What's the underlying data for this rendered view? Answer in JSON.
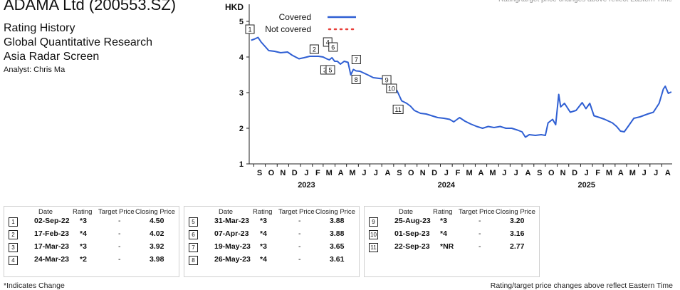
{
  "header": {
    "company": "ADAMA Ltd (200553.SZ)",
    "lines": [
      "Rating History",
      "Global Quantitative Research",
      "Asia Radar Screen"
    ],
    "analyst": "Analyst: Chris Ma"
  },
  "chart_data": {
    "type": "line",
    "ylabel": "HKD",
    "ylim": [
      1,
      5.4
    ],
    "yticks": [
      1,
      2,
      3,
      4,
      5
    ],
    "xlim": [
      "2022-08-20",
      "2025-08-28"
    ],
    "month_labels": [
      "S",
      "O",
      "N",
      "D",
      "J",
      "F",
      "M",
      "A",
      "M",
      "J",
      "J",
      "A",
      "S",
      "O",
      "N",
      "D",
      "J",
      "F",
      "M",
      "A",
      "M",
      "J",
      "J",
      "A",
      "S",
      "O",
      "N",
      "D",
      "J",
      "F",
      "M",
      "A",
      "M",
      "J",
      "J",
      "A"
    ],
    "year_labels": [
      {
        "label": "2023",
        "month": "2023-01"
      },
      {
        "label": "2024",
        "month": "2024-01"
      },
      {
        "label": "2025",
        "month": "2025-01"
      }
    ],
    "legend": [
      {
        "name": "Covered",
        "style": "solid",
        "color": "#2f5fd3"
      },
      {
        "name": "Not covered",
        "style": "dotted",
        "color": "#e8403a"
      }
    ],
    "series": [
      {
        "name": "Covered",
        "color": "#2f5fd3",
        "points": [
          [
            "2022-08-25",
            4.47
          ],
          [
            "2022-09-02",
            4.5
          ],
          [
            "2022-09-12",
            4.55
          ],
          [
            "2022-09-20",
            4.42
          ],
          [
            "2022-09-30",
            4.3
          ],
          [
            "2022-10-10",
            4.18
          ],
          [
            "2022-10-25",
            4.16
          ],
          [
            "2022-11-10",
            4.12
          ],
          [
            "2022-11-28",
            4.14
          ],
          [
            "2022-12-10",
            4.05
          ],
          [
            "2022-12-28",
            3.95
          ],
          [
            "2023-01-10",
            3.98
          ],
          [
            "2023-01-25",
            4.02
          ],
          [
            "2023-02-05",
            4.02
          ],
          [
            "2023-02-17",
            4.02
          ],
          [
            "2023-03-01",
            4.0
          ],
          [
            "2023-03-10",
            3.95
          ],
          [
            "2023-03-17",
            3.92
          ],
          [
            "2023-03-24",
            3.98
          ],
          [
            "2023-03-31",
            3.88
          ],
          [
            "2023-04-07",
            3.88
          ],
          [
            "2023-04-15",
            3.8
          ],
          [
            "2023-04-25",
            3.88
          ],
          [
            "2023-05-05",
            3.85
          ],
          [
            "2023-05-12",
            3.5
          ],
          [
            "2023-05-19",
            3.65
          ],
          [
            "2023-05-26",
            3.61
          ],
          [
            "2023-06-05",
            3.6
          ],
          [
            "2023-06-15",
            3.55
          ],
          [
            "2023-06-25",
            3.5
          ],
          [
            "2023-07-10",
            3.42
          ],
          [
            "2023-07-25",
            3.4
          ],
          [
            "2023-08-10",
            3.38
          ],
          [
            "2023-08-18",
            3.3
          ],
          [
            "2023-08-25",
            3.2
          ],
          [
            "2023-09-01",
            3.16
          ],
          [
            "2023-09-10",
            3.05
          ],
          [
            "2023-09-22",
            2.77
          ],
          [
            "2023-10-05",
            2.7
          ],
          [
            "2023-10-15",
            2.62
          ],
          [
            "2023-10-25",
            2.5
          ],
          [
            "2023-11-10",
            2.42
          ],
          [
            "2023-11-25",
            2.4
          ],
          [
            "2023-12-10",
            2.35
          ],
          [
            "2023-12-25",
            2.3
          ],
          [
            "2024-01-10",
            2.28
          ],
          [
            "2024-01-25",
            2.25
          ],
          [
            "2024-02-05",
            2.18
          ],
          [
            "2024-02-20",
            2.3
          ],
          [
            "2024-03-05",
            2.2
          ],
          [
            "2024-03-20",
            2.12
          ],
          [
            "2024-04-05",
            2.05
          ],
          [
            "2024-04-20",
            2.0
          ],
          [
            "2024-05-05",
            2.05
          ],
          [
            "2024-05-20",
            2.02
          ],
          [
            "2024-06-05",
            2.05
          ],
          [
            "2024-06-20",
            2.0
          ],
          [
            "2024-07-05",
            2.0
          ],
          [
            "2024-07-20",
            1.95
          ],
          [
            "2024-08-01",
            1.9
          ],
          [
            "2024-08-10",
            1.75
          ],
          [
            "2024-08-20",
            1.82
          ],
          [
            "2024-09-05",
            1.8
          ],
          [
            "2024-09-20",
            1.82
          ],
          [
            "2024-10-01",
            1.8
          ],
          [
            "2024-10-08",
            2.15
          ],
          [
            "2024-10-20",
            2.25
          ],
          [
            "2024-10-28",
            2.1
          ],
          [
            "2024-11-05",
            2.95
          ],
          [
            "2024-11-10",
            2.6
          ],
          [
            "2024-11-20",
            2.7
          ],
          [
            "2024-12-05",
            2.45
          ],
          [
            "2024-12-20",
            2.5
          ],
          [
            "2025-01-05",
            2.72
          ],
          [
            "2025-01-15",
            2.55
          ],
          [
            "2025-01-25",
            2.7
          ],
          [
            "2025-02-05",
            2.35
          ],
          [
            "2025-02-20",
            2.3
          ],
          [
            "2025-03-05",
            2.25
          ],
          [
            "2025-03-25",
            2.15
          ],
          [
            "2025-04-05",
            2.05
          ],
          [
            "2025-04-15",
            1.92
          ],
          [
            "2025-04-25",
            1.9
          ],
          [
            "2025-05-05",
            2.05
          ],
          [
            "2025-05-20",
            2.28
          ],
          [
            "2025-06-05",
            2.32
          ],
          [
            "2025-06-25",
            2.4
          ],
          [
            "2025-07-10",
            2.45
          ],
          [
            "2025-07-25",
            2.7
          ],
          [
            "2025-08-05",
            3.1
          ],
          [
            "2025-08-10",
            3.18
          ],
          [
            "2025-08-18",
            2.98
          ],
          [
            "2025-08-26",
            3.02
          ]
        ]
      }
    ],
    "markers": [
      {
        "n": "1",
        "date": "2022-09-02",
        "value": 4.5
      },
      {
        "n": "2",
        "date": "2023-02-17",
        "value": 4.02
      },
      {
        "n": "3",
        "date": "2023-03-17",
        "value": 3.92
      },
      {
        "n": "4",
        "date": "2023-03-24",
        "value": 3.98
      },
      {
        "n": "5",
        "date": "2023-03-31",
        "value": 3.88
      },
      {
        "n": "6",
        "date": "2023-04-07",
        "value": 3.88
      },
      {
        "n": "7",
        "date": "2023-05-19",
        "value": 3.65
      },
      {
        "n": "8",
        "date": "2023-05-26",
        "value": 3.61
      },
      {
        "n": "9",
        "date": "2023-08-25",
        "value": 3.2
      },
      {
        "n": "10",
        "date": "2023-09-01",
        "value": 3.16
      },
      {
        "n": "11",
        "date": "2023-09-22",
        "value": 2.77
      }
    ],
    "top_right_note": "Rating/target price changes above reflect Eastern Time"
  },
  "table": {
    "headers": [
      "Date",
      "Rating",
      "Target Price",
      "Closing Price"
    ],
    "groups": [
      [
        {
          "n": "1",
          "date": "02-Sep-22",
          "rating": "*3",
          "target": "-",
          "close": "4.50"
        },
        {
          "n": "2",
          "date": "17-Feb-23",
          "rating": "*4",
          "target": "-",
          "close": "4.02"
        },
        {
          "n": "3",
          "date": "17-Mar-23",
          "rating": "*3",
          "target": "-",
          "close": "3.92"
        },
        {
          "n": "4",
          "date": "24-Mar-23",
          "rating": "*2",
          "target": "-",
          "close": "3.98"
        }
      ],
      [
        {
          "n": "5",
          "date": "31-Mar-23",
          "rating": "*3",
          "target": "-",
          "close": "3.88"
        },
        {
          "n": "6",
          "date": "07-Apr-23",
          "rating": "*4",
          "target": "-",
          "close": "3.88"
        },
        {
          "n": "7",
          "date": "19-May-23",
          "rating": "*3",
          "target": "-",
          "close": "3.65"
        },
        {
          "n": "8",
          "date": "26-May-23",
          "rating": "*4",
          "target": "-",
          "close": "3.61"
        }
      ],
      [
        {
          "n": "9",
          "date": "25-Aug-23",
          "rating": "*3",
          "target": "-",
          "close": "3.20"
        },
        {
          "n": "10",
          "date": "01-Sep-23",
          "rating": "*4",
          "target": "-",
          "close": "3.16"
        },
        {
          "n": "11",
          "date": "22-Sep-23",
          "rating": "*NR",
          "target": "-",
          "close": "2.77"
        }
      ]
    ]
  },
  "footnotes": {
    "left": "*Indicates Change",
    "right": "Rating/target price changes above reflect Eastern Time"
  }
}
